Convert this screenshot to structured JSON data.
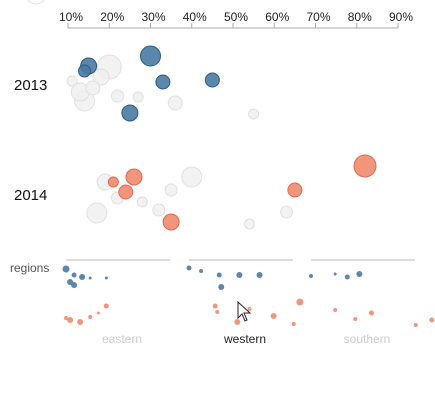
{
  "chart_data": {
    "type": "scatter",
    "x_axis": {
      "ticks": [
        "10%",
        "20%",
        "30%",
        "40%",
        "50%",
        "60%",
        "70%",
        "80%",
        "90%"
      ],
      "range": [
        0.1,
        0.9
      ],
      "position": "top"
    },
    "colors": {
      "2013": "#4a7aa3",
      "2014": "#f08a6e",
      "inactive": "#e2e2e2",
      "axis": "#aaaaaa"
    },
    "rows": [
      {
        "label": "2013",
        "points": [
          {
            "x": 0.15,
            "size": 8,
            "active": true
          },
          {
            "x": 0.14,
            "size": 6,
            "active": true
          },
          {
            "x": 0.3,
            "size": 10,
            "active": true
          },
          {
            "x": 0.33,
            "size": 7,
            "active": true
          },
          {
            "x": 0.45,
            "size": 7,
            "active": true
          },
          {
            "x": 0.25,
            "size": 8,
            "active": true
          },
          {
            "x": 0.2,
            "size": 12,
            "active": false
          },
          {
            "x": 0.14,
            "size": 10,
            "active": false
          },
          {
            "x": 0.18,
            "size": 8,
            "active": false
          },
          {
            "x": 0.11,
            "size": 5,
            "active": false
          },
          {
            "x": 0.13,
            "size": 9,
            "active": false
          },
          {
            "x": 0.16,
            "size": 7,
            "active": false
          },
          {
            "x": 0.22,
            "size": 6,
            "active": false
          },
          {
            "x": 0.27,
            "size": 5,
            "active": false
          },
          {
            "x": 0.36,
            "size": 7,
            "active": false
          },
          {
            "x": 0.55,
            "size": 5,
            "active": false
          }
        ]
      },
      {
        "label": "2014",
        "points": [
          {
            "x": 0.26,
            "size": 8,
            "active": true
          },
          {
            "x": 0.24,
            "size": 7,
            "active": true
          },
          {
            "x": 0.21,
            "size": 5,
            "active": true
          },
          {
            "x": 0.35,
            "size": 8,
            "active": true
          },
          {
            "x": 0.65,
            "size": 7,
            "active": true
          },
          {
            "x": 0.82,
            "size": 11,
            "active": true
          },
          {
            "x": 0.4,
            "size": 10,
            "active": false
          },
          {
            "x": 0.35,
            "size": 6,
            "active": false
          },
          {
            "x": 0.19,
            "size": 8,
            "active": false
          },
          {
            "x": 0.17,
            "size": 10,
            "active": false
          },
          {
            "x": 0.22,
            "size": 6,
            "active": false
          },
          {
            "x": 0.32,
            "size": 6,
            "active": false
          },
          {
            "x": 0.28,
            "size": 5,
            "active": false
          },
          {
            "x": 0.54,
            "size": 5,
            "active": false
          },
          {
            "x": 0.63,
            "size": 6,
            "active": false
          }
        ]
      }
    ],
    "regions": {
      "label": "regions",
      "items": [
        {
          "name": "eastern",
          "active": false,
          "points_2013": [
            [
              0.1,
              3.5
            ],
            [
              0.14,
              2.5
            ],
            [
              0.18,
              3
            ],
            [
              0.12,
              3
            ],
            [
              0.14,
              3
            ],
            [
              0.22,
              1.5
            ],
            [
              0.3,
              1.5
            ]
          ],
          "points_2014": [
            [
              0.3,
              2.5
            ],
            [
              0.22,
              2
            ],
            [
              0.17,
              3
            ],
            [
              0.1,
              2
            ],
            [
              0.12,
              3
            ],
            [
              0.26,
              1.5
            ]
          ]
        },
        {
          "name": "western",
          "active": true,
          "points_2013": [
            [
              0.1,
              2.5
            ],
            [
              0.16,
              2
            ],
            [
              0.25,
              2.5
            ],
            [
              0.35,
              3
            ],
            [
              0.45,
              3
            ],
            [
              0.26,
              3
            ]
          ],
          "points_2014": [
            [
              0.23,
              2.5
            ],
            [
              0.24,
              2
            ],
            [
              0.34,
              3
            ],
            [
              0.4,
              2
            ],
            [
              0.52,
              3
            ],
            [
              0.65,
              3.5
            ],
            [
              0.62,
              2
            ]
          ]
        },
        {
          "name": "southern",
          "active": false,
          "points_2013": [
            [
              0.1,
              2
            ],
            [
              0.22,
              1.5
            ],
            [
              0.28,
              2.5
            ],
            [
              0.34,
              3
            ],
            [
              0.75,
              1.5
            ]
          ],
          "points_2014": [
            [
              0.22,
              2
            ],
            [
              0.32,
              2
            ],
            [
              0.4,
              2.5
            ],
            [
              0.62,
              2
            ],
            [
              0.7,
              2.5
            ],
            [
              0.82,
              3
            ]
          ]
        }
      ]
    }
  }
}
